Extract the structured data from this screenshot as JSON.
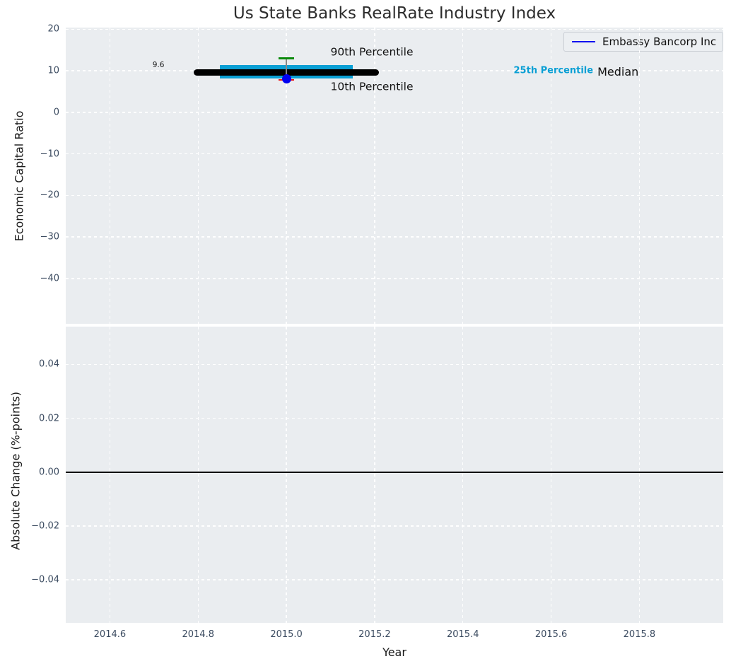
{
  "chart_data": [
    {
      "id": "economic-capital-ratio-panel",
      "type": "scatter",
      "title": "Us State Banks RealRate Industry Index",
      "xlabel": "",
      "ylabel": "Economic Capital Ratio",
      "xlim": [
        2014.5,
        2015.99
      ],
      "ylim": [
        -50.9,
        20.4
      ],
      "xticks": [
        2014.6,
        2014.8,
        2015.0,
        2015.2,
        2015.4,
        2015.6,
        2015.8
      ],
      "xtick_labels": [
        "2014.6",
        "2014.8",
        "2015.0",
        "2015.2",
        "2015.4",
        "2015.6",
        "2015.8"
      ],
      "yticks": [
        20,
        10,
        0,
        -10,
        -20,
        -30,
        -40
      ],
      "ytick_labels": [
        "20",
        "10",
        "0",
        "−10",
        "−20",
        "−30",
        "−40"
      ],
      "grid": true,
      "legend": {
        "position": "upper right",
        "entries": [
          {
            "label": "Embassy Bancorp Inc",
            "color": "#0000f0"
          }
        ]
      },
      "series": [
        {
          "name": "Embassy Bancorp Inc",
          "marker": "circle",
          "color": "#0000f0",
          "points": [
            {
              "x": 2015.0,
              "y": 8.0
            }
          ]
        }
      ],
      "industry_percentiles": {
        "x": 2015.0,
        "p10": 7.8,
        "p25": 8.1,
        "median": 9.6,
        "p75": 11.4,
        "p90": 13.0,
        "median_label": "9.6",
        "median_x_span": [
          2014.79,
          2015.21
        ],
        "iqr_x_span": [
          2014.85,
          2015.15
        ],
        "cap_halfwidth_years": 0.018,
        "colors": {
          "median": "#000000",
          "iqr": "#0a9fd4",
          "p90_cap": "#0b8a0b",
          "p10_cap": "#ee1111",
          "whisker": "#888888"
        }
      },
      "annotations": [
        {
          "text": "9.6",
          "x": 2014.71,
          "y": 11.3,
          "size": 10.5,
          "color": "#141414",
          "weight": "normal",
          "anchor": "middle"
        },
        {
          "text": "90th Percentile",
          "x": 2015.1,
          "y": 14.4,
          "size": 15.5,
          "color": "#111111",
          "weight": "normal",
          "anchor": "start"
        },
        {
          "text": "10th Percentile",
          "x": 2015.1,
          "y": 6.1,
          "size": 15.5,
          "color": "#111111",
          "weight": "normal",
          "anchor": "start"
        },
        {
          "text": "25th Percentile",
          "x": 2015.515,
          "y": 10.0,
          "size": 13,
          "color": "#0a9fd4",
          "weight": "bold",
          "anchor": "start"
        },
        {
          "text": "Median",
          "x": 2015.705,
          "y": 9.75,
          "size": 16,
          "color": "#111111",
          "weight": "normal",
          "anchor": "start"
        }
      ]
    },
    {
      "id": "absolute-change-panel",
      "type": "line",
      "title": "",
      "xlabel": "Year",
      "ylabel": "Absolute Change (%-points)",
      "xlim": [
        2014.5,
        2015.99
      ],
      "ylim": [
        -0.056,
        0.054
      ],
      "xticks": [
        2014.6,
        2014.8,
        2015.0,
        2015.2,
        2015.4,
        2015.6,
        2015.8
      ],
      "xtick_labels": [
        "2014.6",
        "2014.8",
        "2015.0",
        "2015.2",
        "2015.4",
        "2015.6",
        "2015.8"
      ],
      "yticks": [
        0.04,
        0.02,
        0.0,
        -0.02,
        -0.04
      ],
      "ytick_labels": [
        "0.04",
        "0.02",
        "0.00",
        "−0.02",
        "−0.04"
      ],
      "grid": true,
      "zero_line": {
        "y": 0.0,
        "color": "#000000"
      }
    }
  ],
  "style": {
    "axes_background": "#eaedf0",
    "grid_color": "#ffffff",
    "tick_color": "#3b4b60",
    "title_color": "#2d2d2d"
  }
}
